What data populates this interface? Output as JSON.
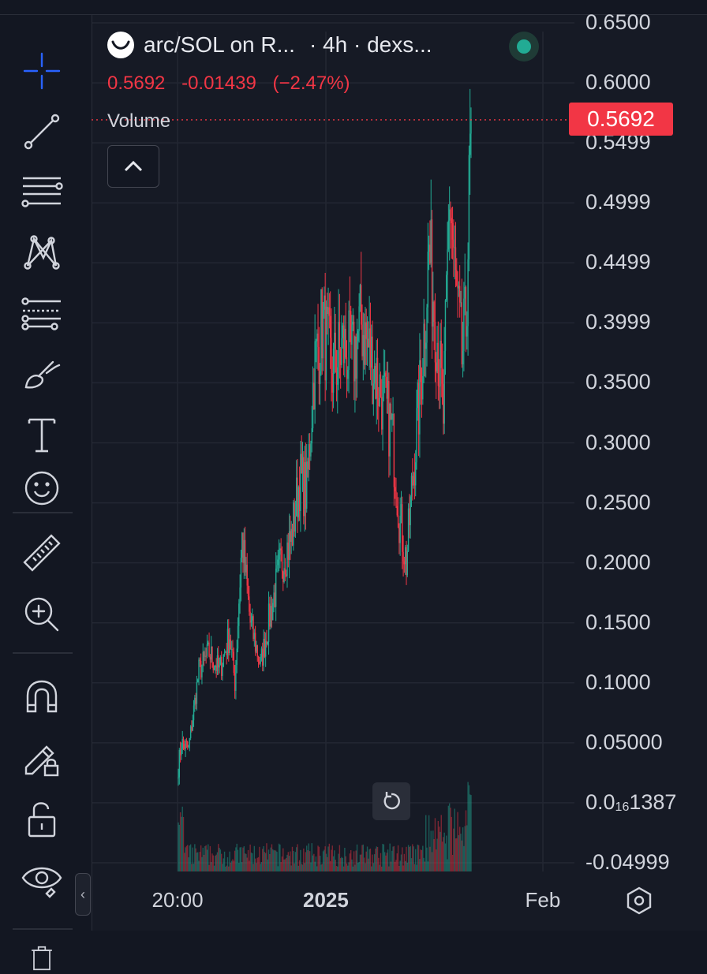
{
  "legend": {
    "title": "arc/SOL on R...",
    "interval": "· 4h · dexs...",
    "last_price": "0.5692",
    "change": "-0.01439",
    "change_pct": "(−2.47%)",
    "volume_label": "Volume"
  },
  "price_tag": "0.5692",
  "y_ticks": [
    {
      "main": "0.6500",
      "sub": ""
    },
    {
      "main": "0.6000",
      "sub": ""
    },
    {
      "main": "0.5499",
      "sub": ""
    },
    {
      "main": "0.4999",
      "sub": ""
    },
    {
      "main": "0.4499",
      "sub": ""
    },
    {
      "main": "0.3999",
      "sub": ""
    },
    {
      "main": "0.3500",
      "sub": ""
    },
    {
      "main": "0.3000",
      "sub": ""
    },
    {
      "main": "0.2500",
      "sub": ""
    },
    {
      "main": "0.2000",
      "sub": ""
    },
    {
      "main": "0.1500",
      "sub": ""
    },
    {
      "main": "0.1000",
      "sub": ""
    },
    {
      "main": "0.05000",
      "sub": ""
    },
    {
      "main": "0.0",
      "sub": "16",
      "tail": "1387"
    },
    {
      "main": "-0.04999",
      "sub": ""
    }
  ],
  "x_ticks": [
    {
      "label": "20:00",
      "bold": false
    },
    {
      "label": "2025",
      "bold": true
    },
    {
      "label": "Feb",
      "bold": false
    }
  ],
  "colors": {
    "up": "#22ab94",
    "down": "#f23645",
    "background": "#161a25",
    "grid": "#232733",
    "accent": "#2962ff"
  },
  "tools": [
    "crosshair-icon",
    "trend-line-icon",
    "horizontal-lines-icon",
    "pattern-icon",
    "fib-icon",
    "brush-icon",
    "text-icon",
    "emoji-icon",
    "ruler-icon",
    "zoom-in-icon",
    "magnet-icon",
    "lock-drawing-icon",
    "unlock-icon",
    "eye-icon",
    "trash-icon"
  ],
  "chart_data": {
    "type": "candlestick",
    "pair": "arc/SOL",
    "timeframe": "4h",
    "y_range": [
      -0.04999,
      0.65
    ],
    "last_price": 0.5692,
    "grid": true,
    "x_axis_labels": [
      "20:00",
      "2025",
      "Feb"
    ],
    "anchors": [
      {
        "i": 0,
        "p": 0.03
      },
      {
        "i": 3,
        "p": 0.05
      },
      {
        "i": 10,
        "p": 0.045
      },
      {
        "i": 20,
        "p": 0.11
      },
      {
        "i": 30,
        "p": 0.125
      },
      {
        "i": 40,
        "p": 0.11
      },
      {
        "i": 50,
        "p": 0.14
      },
      {
        "i": 55,
        "p": 0.1
      },
      {
        "i": 62,
        "p": 0.22
      },
      {
        "i": 70,
        "p": 0.15
      },
      {
        "i": 80,
        "p": 0.115
      },
      {
        "i": 90,
        "p": 0.16
      },
      {
        "i": 100,
        "p": 0.2
      },
      {
        "i": 110,
        "p": 0.22
      },
      {
        "i": 118,
        "p": 0.27
      },
      {
        "i": 125,
        "p": 0.26
      },
      {
        "i": 132,
        "p": 0.36
      },
      {
        "i": 140,
        "p": 0.4
      },
      {
        "i": 150,
        "p": 0.36
      },
      {
        "i": 160,
        "p": 0.38
      },
      {
        "i": 170,
        "p": 0.37
      },
      {
        "i": 178,
        "p": 0.4
      },
      {
        "i": 188,
        "p": 0.37
      },
      {
        "i": 198,
        "p": 0.34
      },
      {
        "i": 208,
        "p": 0.31
      },
      {
        "i": 215,
        "p": 0.24
      },
      {
        "i": 222,
        "p": 0.2
      },
      {
        "i": 228,
        "p": 0.27
      },
      {
        "i": 236,
        "p": 0.35
      },
      {
        "i": 244,
        "p": 0.46
      },
      {
        "i": 252,
        "p": 0.39
      },
      {
        "i": 258,
        "p": 0.32
      },
      {
        "i": 264,
        "p": 0.51
      },
      {
        "i": 270,
        "p": 0.43
      },
      {
        "i": 276,
        "p": 0.37
      },
      {
        "i": 280,
        "p": 0.4
      },
      {
        "i": 285,
        "p": 0.5692
      }
    ]
  }
}
